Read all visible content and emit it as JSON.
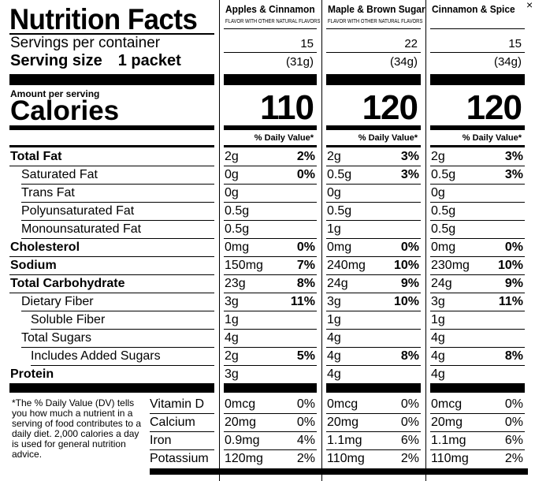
{
  "header": {
    "title": "Nutrition Facts",
    "servings_label": "Servings per container",
    "serving_size_label": "Serving size",
    "serving_size_value": "1 packet",
    "amount_per_serving": "Amount per serving",
    "calories_label": "Calories",
    "dv_header": "% Daily Value*"
  },
  "products": [
    {
      "name": "Apples & Cinnamon",
      "subtitle": "FLAVOR WITH OTHER NATURAL FLAVORS",
      "servings": "15",
      "serving_size": "(31g)",
      "calories": "110"
    },
    {
      "name": "Maple & Brown Sugar",
      "subtitle": "FLAVOR WITH OTHER NATURAL FLAVORS",
      "servings": "22",
      "serving_size": "(34g)",
      "calories": "120"
    },
    {
      "name": "Cinnamon & Spice",
      "subtitle": "",
      "servings": "15",
      "serving_size": "(34g)",
      "calories": "120"
    }
  ],
  "nutrients": [
    {
      "label": "Total Fat",
      "bold": true,
      "indent": 0,
      "values": [
        [
          "2g",
          "2%"
        ],
        [
          "2g",
          "3%"
        ],
        [
          "2g",
          "3%"
        ]
      ]
    },
    {
      "label": "Saturated Fat",
      "bold": false,
      "indent": 1,
      "values": [
        [
          "0g",
          "0%"
        ],
        [
          "0.5g",
          "3%"
        ],
        [
          "0.5g",
          "3%"
        ]
      ]
    },
    {
      "label": "Trans Fat",
      "bold": false,
      "indent": 1,
      "values": [
        [
          "0g",
          ""
        ],
        [
          "0g",
          ""
        ],
        [
          "0g",
          ""
        ]
      ]
    },
    {
      "label": "Polyunsaturated Fat",
      "bold": false,
      "indent": 1,
      "values": [
        [
          "0.5g",
          ""
        ],
        [
          "0.5g",
          ""
        ],
        [
          "0.5g",
          ""
        ]
      ]
    },
    {
      "label": "Monounsaturated Fat",
      "bold": false,
      "indent": 1,
      "values": [
        [
          "0.5g",
          ""
        ],
        [
          "1g",
          ""
        ],
        [
          "0.5g",
          ""
        ]
      ]
    },
    {
      "label": "Cholesterol",
      "bold": true,
      "indent": 0,
      "values": [
        [
          "0mg",
          "0%"
        ],
        [
          "0mg",
          "0%"
        ],
        [
          "0mg",
          "0%"
        ]
      ]
    },
    {
      "label": "Sodium",
      "bold": true,
      "indent": 0,
      "values": [
        [
          "150mg",
          "7%"
        ],
        [
          "240mg",
          "10%"
        ],
        [
          "230mg",
          "10%"
        ]
      ]
    },
    {
      "label": "Total Carbohydrate",
      "bold": true,
      "indent": 0,
      "values": [
        [
          "23g",
          "8%"
        ],
        [
          "24g",
          "9%"
        ],
        [
          "24g",
          "9%"
        ]
      ]
    },
    {
      "label": "Dietary Fiber",
      "bold": false,
      "indent": 1,
      "values": [
        [
          "3g",
          "11%"
        ],
        [
          "3g",
          "10%"
        ],
        [
          "3g",
          "11%"
        ]
      ]
    },
    {
      "label": "Soluble Fiber",
      "bold": false,
      "indent": 2,
      "values": [
        [
          "1g",
          ""
        ],
        [
          "1g",
          ""
        ],
        [
          "1g",
          ""
        ]
      ]
    },
    {
      "label": "Total Sugars",
      "bold": false,
      "indent": 1,
      "values": [
        [
          "4g",
          ""
        ],
        [
          "4g",
          ""
        ],
        [
          "4g",
          ""
        ]
      ]
    },
    {
      "label": "Includes Added Sugars",
      "bold": false,
      "indent": 2,
      "values": [
        [
          "2g",
          "5%"
        ],
        [
          "4g",
          "8%"
        ],
        [
          "4g",
          "8%"
        ]
      ]
    },
    {
      "label": "Protein",
      "bold": true,
      "indent": 0,
      "values": [
        [
          "3g",
          ""
        ],
        [
          "4g",
          ""
        ],
        [
          "4g",
          ""
        ]
      ]
    }
  ],
  "vitamins": [
    {
      "label": "Vitamin D",
      "values": [
        [
          "0mcg",
          "0%"
        ],
        [
          "0mcg",
          "0%"
        ],
        [
          "0mcg",
          "0%"
        ]
      ]
    },
    {
      "label": "Calcium",
      "values": [
        [
          "20mg",
          "0%"
        ],
        [
          "20mg",
          "0%"
        ],
        [
          "20mg",
          "0%"
        ]
      ]
    },
    {
      "label": "Iron",
      "values": [
        [
          "0.9mg",
          "4%"
        ],
        [
          "1.1mg",
          "6%"
        ],
        [
          "1.1mg",
          "6%"
        ]
      ]
    },
    {
      "label": "Potassium",
      "values": [
        [
          "120mg",
          "2%"
        ],
        [
          "110mg",
          "2%"
        ],
        [
          "110mg",
          "2%"
        ]
      ]
    }
  ],
  "footnote": "*The % Daily Value (DV) tells you how much a nutrient in a serving of food contributes to a daily diet. 2,000 calories a day is used for general nutrition advice."
}
